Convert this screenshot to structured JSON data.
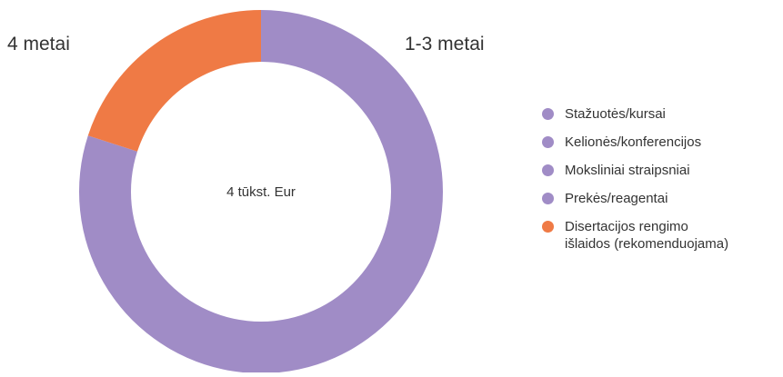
{
  "chart_data": {
    "type": "pie",
    "title": "",
    "center_text": "4 tūkst. Eur",
    "segment_labels": {
      "left": "4 metai",
      "right": "1-3 metai"
    },
    "slices": [
      {
        "label": "1-3 metai",
        "value": 80,
        "color": "#a08cc6"
      },
      {
        "label": "4 metai",
        "value": 20,
        "color": "#ef7a45"
      }
    ],
    "legend": [
      {
        "label": "Stažuotės/kursai",
        "color": "#a08cc6"
      },
      {
        "label": "Kelionės/konferencijos",
        "color": "#a08cc6"
      },
      {
        "label": "Moksliniai straipsniai",
        "color": "#a08cc6"
      },
      {
        "label": "Prekės/reagentai",
        "color": "#a08cc6"
      },
      {
        "label": "Disertacijos rengimo\nišlaidos (rekomenduojama)",
        "color": "#ef7a45"
      }
    ],
    "legend_position": "right"
  }
}
